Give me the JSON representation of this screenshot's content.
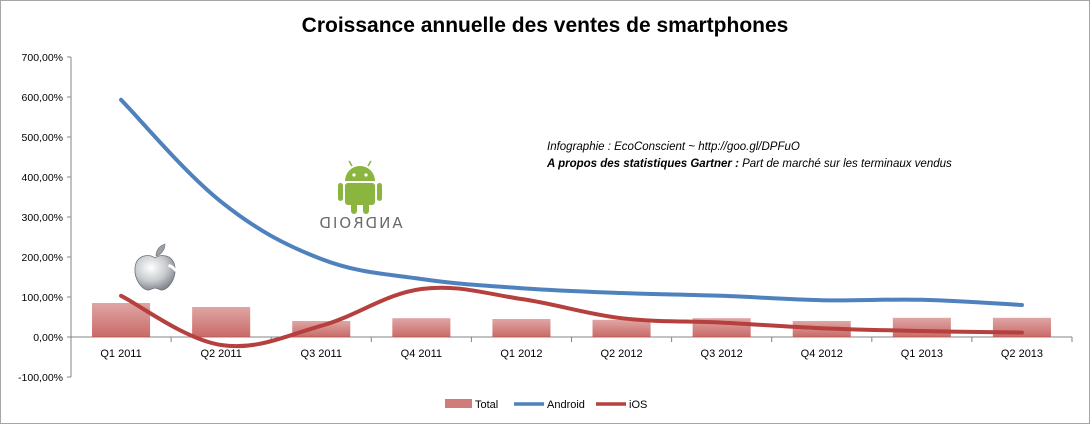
{
  "chart_data": {
    "type": "bar",
    "title": "Croissance annuelle des ventes de smartphones",
    "categories": [
      "Q1 2011",
      "Q2 2011",
      "Q3 2011",
      "Q4 2011",
      "Q1 2012",
      "Q2 2012",
      "Q3 2012",
      "Q4 2012",
      "Q1 2013",
      "Q2 2013"
    ],
    "y_ticks": [
      "700,00%",
      "600,00%",
      "500,00%",
      "400,00%",
      "300,00%",
      "200,00%",
      "100,00%",
      "0,00%",
      "-100,00%"
    ],
    "ylim": [
      -100,
      700
    ],
    "grid": false,
    "legend_position": "bottom",
    "series": [
      {
        "name": "Total",
        "kind": "bar",
        "color": "#c0504d",
        "values": [
          85,
          75,
          40,
          47,
          45,
          43,
          47,
          40,
          48,
          48
        ]
      },
      {
        "name": "Android",
        "kind": "line",
        "color": "#4f81bd",
        "values": [
          593,
          338,
          195,
          145,
          122,
          110,
          103,
          92,
          93,
          80
        ]
      },
      {
        "name": "iOS",
        "kind": "line",
        "color": "#c0504d",
        "values": [
          103,
          -20,
          28,
          120,
          95,
          47,
          36,
          22,
          15,
          11
        ]
      }
    ],
    "annotations": {
      "line1": "Infographie : EcoConscient  ~ http://goo.gl/DPFuO",
      "line2_bold": "A propos des statistiques Gartner :",
      "line2_rest": " Part de marché sur les terminaux vendus",
      "android_logo_text": "ANDROID"
    }
  },
  "icons": {
    "apple": "apple-logo-icon",
    "android": "android-robot-icon"
  },
  "colors": {
    "bar": "#c0504d",
    "android_line": "#4f81bd",
    "ios_line": "#b5403d",
    "android_green": "#8ab63f"
  }
}
